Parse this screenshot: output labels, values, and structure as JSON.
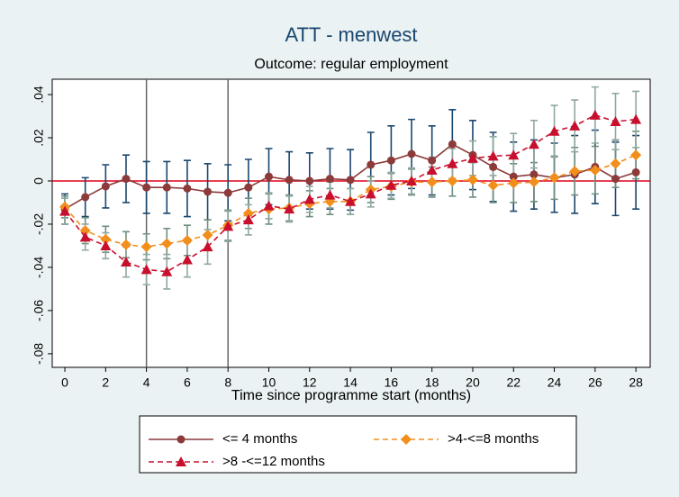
{
  "chart_data": {
    "type": "line",
    "title": "ATT - menwest",
    "subtitle": "Outcome: regular employment",
    "x_label": "Time since programme start (months)",
    "x": [
      0,
      1,
      2,
      3,
      4,
      5,
      6,
      7,
      8,
      9,
      10,
      11,
      12,
      13,
      14,
      15,
      16,
      17,
      18,
      19,
      20,
      21,
      22,
      23,
      24,
      25,
      26,
      27,
      28
    ],
    "xlim": [
      -0.62,
      28.7
    ],
    "xticks": [
      0,
      2,
      4,
      6,
      8,
      10,
      12,
      14,
      16,
      18,
      20,
      22,
      24,
      26,
      28
    ],
    "ylim": [
      -0.0863,
      0.0471
    ],
    "yticks": [
      {
        "value": 0.04,
        "label": ".04"
      },
      {
        "value": 0.02,
        "label": ".02"
      },
      0,
      {
        "value": -0.02,
        "label": "-.02"
      },
      {
        "value": -0.04,
        "label": "-.04"
      },
      {
        "value": -0.06,
        "label": "-.06"
      },
      {
        "value": -0.08,
        "label": "-.08"
      }
    ],
    "xlines": [
      4,
      8
    ],
    "ylines": [
      0
    ],
    "series": [
      {
        "name": "<= 4 months",
        "color": "#8c3a3a",
        "ci_color": "#1a476f",
        "marker": "circle",
        "dashed": false,
        "values": [
          -0.013,
          -0.0075,
          -0.0025,
          0.001,
          -0.003,
          -0.003,
          -0.0035,
          -0.005,
          -0.0055,
          -0.003,
          0.002,
          0.0005,
          0.0,
          0.001,
          0.0005,
          0.0075,
          0.0095,
          0.0125,
          0.0095,
          0.017,
          0.012,
          0.0065,
          0.002,
          0.003,
          0.0015,
          0.003,
          0.0065,
          0.001,
          0.004
        ],
        "errors": [
          0.007,
          0.009,
          0.01,
          0.011,
          0.012,
          0.012,
          0.013,
          0.013,
          0.013,
          0.013,
          0.013,
          0.013,
          0.013,
          0.014,
          0.014,
          0.015,
          0.016,
          0.016,
          0.016,
          0.016,
          0.016,
          0.016,
          0.016,
          0.016,
          0.016,
          0.018,
          0.017,
          0.017,
          0.017
        ]
      },
      {
        "name": ">4-<=8 months",
        "color": "#f28e1c",
        "ci_color": "#6f8f7f",
        "marker": "diamond",
        "dashed": true,
        "values": [
          -0.012,
          -0.023,
          -0.027,
          -0.0295,
          -0.0305,
          -0.029,
          -0.0275,
          -0.025,
          -0.0205,
          -0.015,
          -0.013,
          -0.0125,
          -0.0105,
          -0.0095,
          -0.0095,
          -0.004,
          -0.0025,
          -0.0005,
          -0.0005,
          0.0,
          0.0005,
          -0.002,
          -0.001,
          -0.0005,
          0.0015,
          0.0045,
          0.005,
          0.008,
          0.012
        ],
        "errors": [
          0.005,
          0.006,
          0.006,
          0.006,
          0.006,
          0.007,
          0.007,
          0.007,
          0.007,
          0.007,
          0.007,
          0.006,
          0.006,
          0.006,
          0.006,
          0.006,
          0.006,
          0.006,
          0.007,
          0.007,
          0.008,
          0.008,
          0.009,
          0.009,
          0.01,
          0.011,
          0.011,
          0.011,
          0.011
        ]
      },
      {
        "name": ">8 -<=12 months",
        "color": "#c8102e",
        "ci_color": "#90a8a0",
        "marker": "triangle",
        "dashed": true,
        "values": [
          -0.014,
          -0.026,
          -0.03,
          -0.0375,
          -0.041,
          -0.042,
          -0.0365,
          -0.0305,
          -0.021,
          -0.018,
          -0.0115,
          -0.013,
          -0.0085,
          -0.0065,
          -0.0095,
          -0.006,
          -0.002,
          0.0,
          0.005,
          0.008,
          0.0105,
          0.0115,
          0.012,
          0.017,
          0.023,
          0.0255,
          0.0305,
          0.0275,
          0.0285
        ],
        "errors": [
          0.006,
          0.006,
          0.006,
          0.007,
          0.007,
          0.008,
          0.008,
          0.008,
          0.007,
          0.007,
          0.006,
          0.006,
          0.006,
          0.006,
          0.006,
          0.006,
          0.006,
          0.006,
          0.006,
          0.007,
          0.008,
          0.009,
          0.01,
          0.011,
          0.012,
          0.012,
          0.013,
          0.013,
          0.013
        ]
      }
    ]
  }
}
